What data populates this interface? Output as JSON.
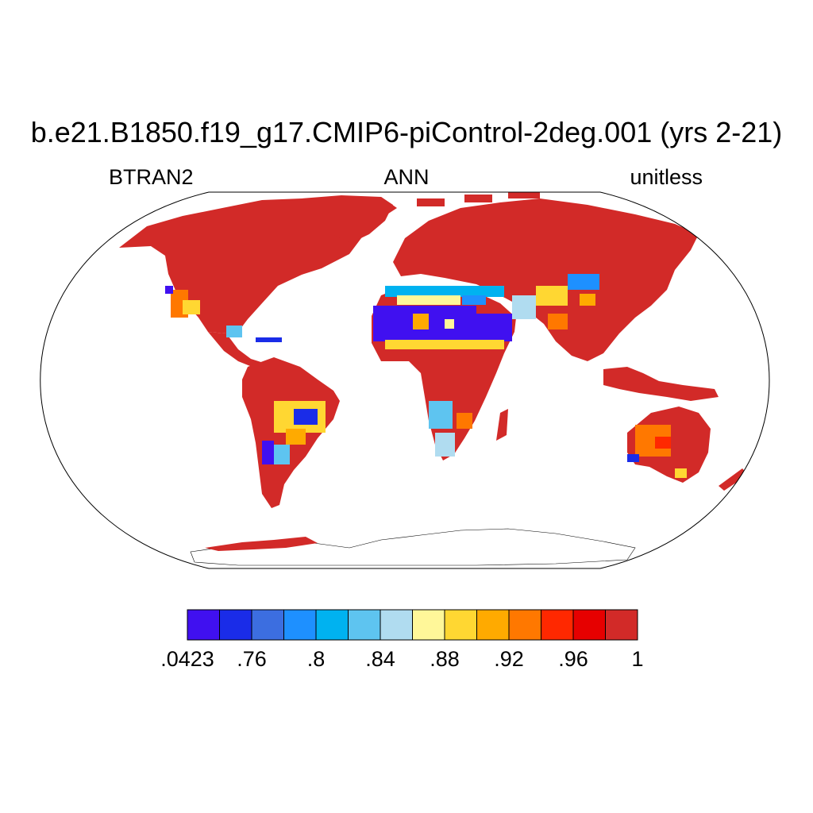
{
  "header": {
    "title": "b.e21.B1850.f19_g17.CMIP6-piControl-2deg.001 (yrs 2-21)",
    "left_label": "BTRAN2",
    "center_label": "ANN",
    "right_label": "unitless"
  },
  "map": {
    "projection": "robinson",
    "variable": "BTRAN2",
    "season": "ANN"
  },
  "colorbar": {
    "colors": [
      "#4010f0",
      "#1a2ce8",
      "#3c6ee0",
      "#1e90ff",
      "#00b2f0",
      "#5ec4f0",
      "#b0dcf0",
      "#fff799",
      "#ffd732",
      "#ffaa00",
      "#ff7800",
      "#ff2800",
      "#e60000",
      "#d22a28"
    ],
    "tick_labels": [
      ".0423",
      ".76",
      ".8",
      ".84",
      ".88",
      ".92",
      ".96",
      "1"
    ]
  }
}
